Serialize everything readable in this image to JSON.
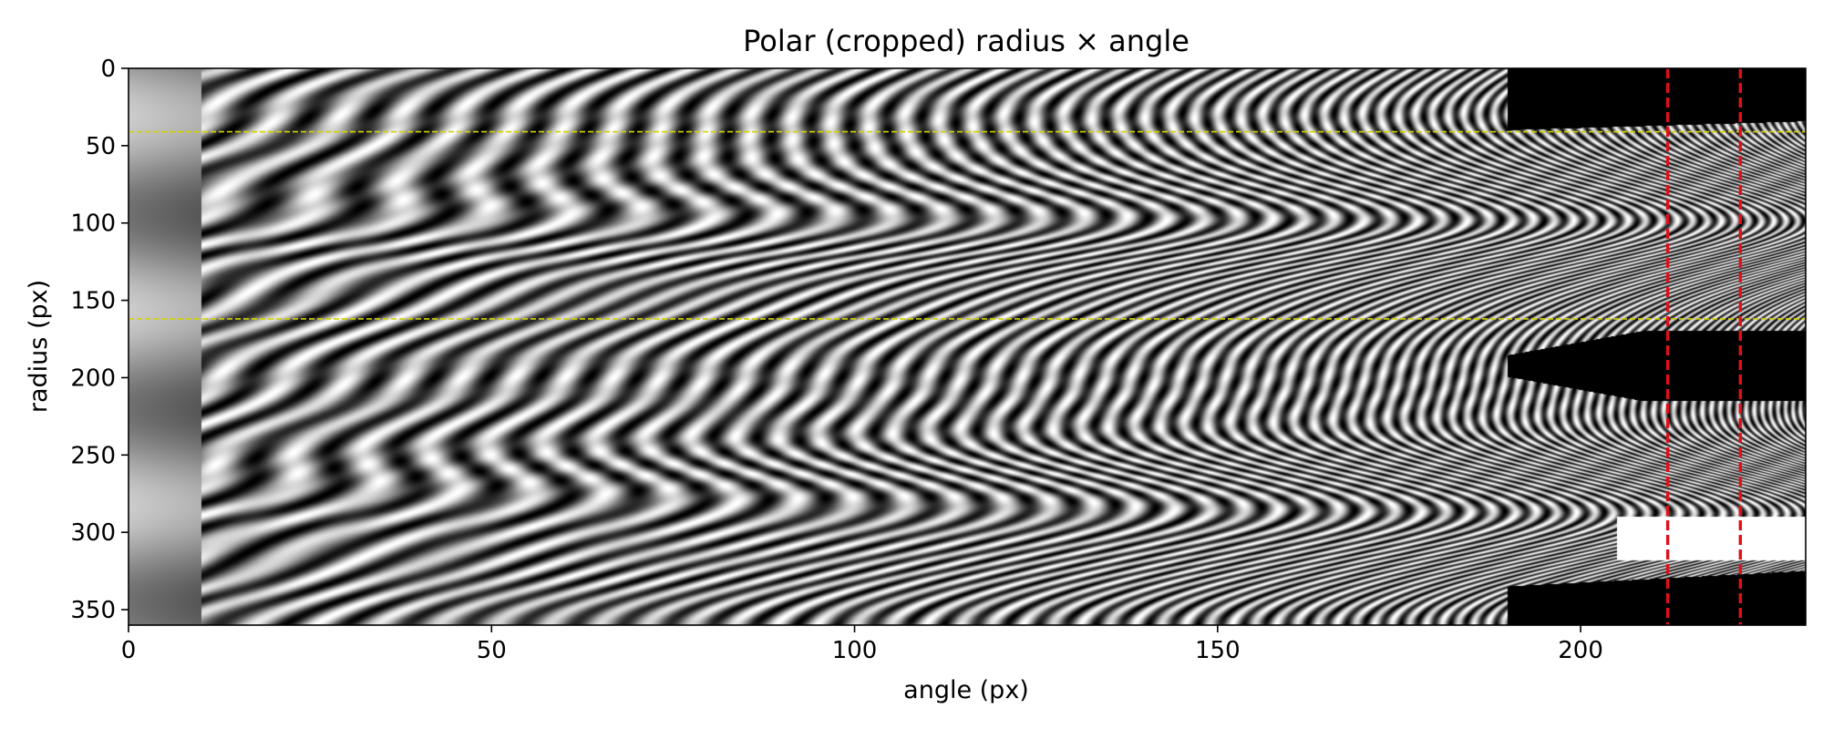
{
  "chart_data": {
    "type": "heatmap",
    "title": "Polar (cropped) radius × angle",
    "xlabel": "angle (px)",
    "ylabel": "radius (px)",
    "xlim": [
      0,
      231
    ],
    "ylim": [
      360,
      0
    ],
    "colormap": "gray",
    "x_ticks": [
      0,
      50,
      100,
      150,
      200
    ],
    "y_ticks": [
      0,
      50,
      100,
      150,
      200,
      250,
      300,
      350
    ],
    "reference_lines": {
      "horizontal": {
        "y": [
          41,
          162
        ],
        "color": "#d4d400",
        "style": "dashed"
      },
      "vertical": {
        "x": [
          212,
          222
        ],
        "color": "#e0101a",
        "style": "dashed"
      }
    },
    "features": {
      "pattern": "interference fringes (chevrons opening to the left)",
      "chevron_centers_radius": [
        100,
        290
      ],
      "fringe_spacing_start_angle": 16,
      "fringe_spacing_end_angle": 5,
      "blank_region_start_angle": 190,
      "blank_region_radius_ranges": [
        [
          0,
          38
        ],
        [
          175,
          210
        ],
        [
          325,
          360
        ]
      ],
      "white_patch": {
        "angle": [
          205,
          231
        ],
        "radius": [
          290,
          318
        ]
      }
    }
  }
}
